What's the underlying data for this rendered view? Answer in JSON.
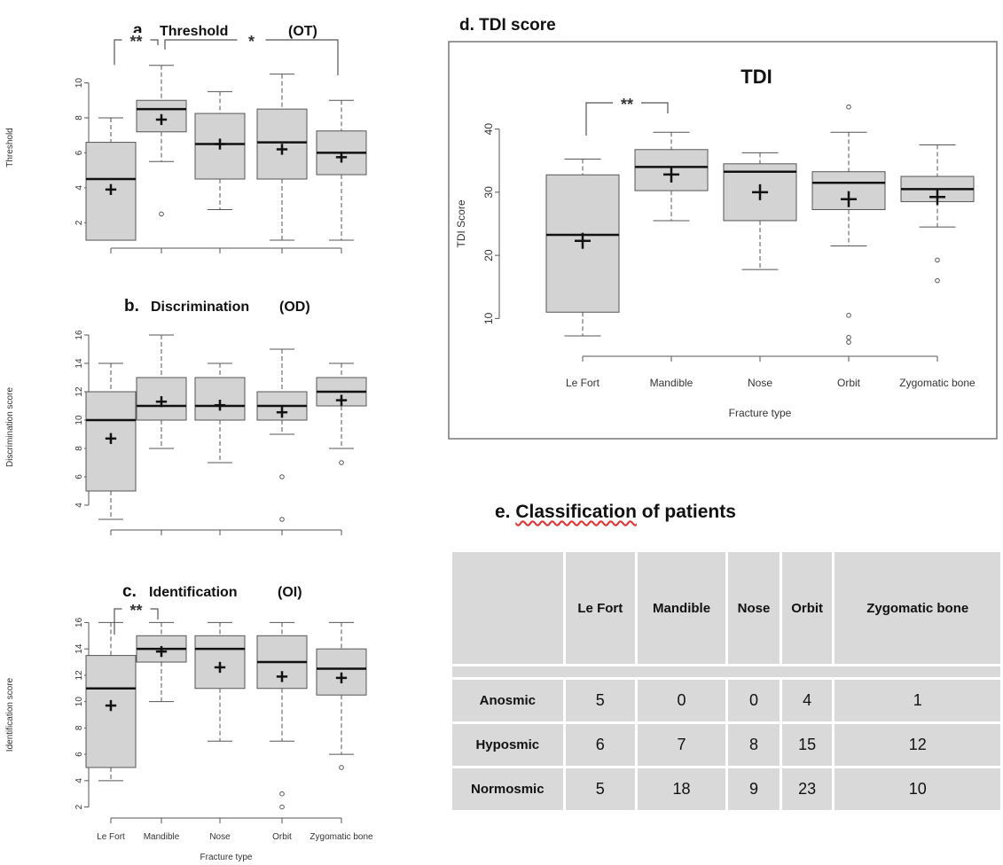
{
  "chart_data": [
    {
      "id": "threshold",
      "type": "box",
      "panel_letter": "a.",
      "title": "Threshold",
      "title_code": "(OT)",
      "xlabel": "",
      "ylabel": "Threshold",
      "ylim": [
        0.8,
        11.8
      ],
      "yticks": [
        2,
        4,
        6,
        8,
        10
      ],
      "categories": [
        "Le Fort",
        "Mandible",
        "Nose",
        "Orbit",
        "Zygomatic bone"
      ],
      "show_category_labels": false,
      "boxes": [
        {
          "low": 1,
          "q1": 1,
          "median": 4.5,
          "q3": 6.6,
          "high": 8,
          "mean": 3.9,
          "outliers": []
        },
        {
          "low": 5.5,
          "q1": 7.2,
          "median": 8.5,
          "q3": 9,
          "high": 11,
          "mean": 7.9,
          "outliers": [
            2.5
          ]
        },
        {
          "low": 2.75,
          "q1": 4.5,
          "median": 6.5,
          "q3": 8.25,
          "high": 9.5,
          "mean": 6.5,
          "outliers": []
        },
        {
          "low": 1,
          "q1": 4.5,
          "median": 6.6,
          "q3": 8.5,
          "high": 10.5,
          "mean": 6.2,
          "outliers": []
        },
        {
          "low": 1,
          "q1": 4.75,
          "median": 6,
          "q3": 7.25,
          "high": 9,
          "mean": 5.75,
          "outliers": []
        }
      ],
      "significance": [
        {
          "from": 0,
          "to": 1,
          "label": "**"
        },
        {
          "from": 1,
          "to": 4,
          "label": "*"
        }
      ]
    },
    {
      "id": "discrimination",
      "type": "box",
      "panel_letter": "b.",
      "title": "Discrimination",
      "title_code": "(OD)",
      "xlabel": "",
      "ylabel": "Discrimination score",
      "ylim": [
        2.5,
        16.5
      ],
      "yticks": [
        4,
        6,
        8,
        10,
        12,
        14,
        16
      ],
      "categories": [
        "Le Fort",
        "Mandible",
        "Nose",
        "Orbit",
        "Zygomatic bone"
      ],
      "show_category_labels": false,
      "boxes": [
        {
          "low": 3,
          "q1": 5,
          "median": 10,
          "q3": 12,
          "high": 14,
          "mean": 8.7,
          "outliers": []
        },
        {
          "low": 8,
          "q1": 10,
          "median": 11,
          "q3": 13,
          "high": 16,
          "mean": 11.3,
          "outliers": []
        },
        {
          "low": 7,
          "q1": 10,
          "median": 11,
          "q3": 13,
          "high": 14,
          "mean": 11.05,
          "outliers": []
        },
        {
          "low": 9,
          "q1": 10,
          "median": 11,
          "q3": 12,
          "high": 15,
          "mean": 10.55,
          "outliers": [
            6,
            3
          ]
        },
        {
          "low": 8,
          "q1": 11,
          "median": 12,
          "q3": 13,
          "high": 14,
          "mean": 11.4,
          "outliers": [
            7
          ]
        }
      ],
      "significance": []
    },
    {
      "id": "identification",
      "type": "box",
      "panel_letter": "c.",
      "title": "Identification",
      "title_code": "(OI)",
      "xlabel": "Fracture type",
      "ylabel": "Identification score",
      "ylim": [
        1.5,
        16.5
      ],
      "yticks": [
        2,
        4,
        6,
        8,
        10,
        12,
        14,
        16
      ],
      "categories": [
        "Le Fort",
        "Mandible",
        "Nose",
        "Orbit",
        "Zygomatic bone"
      ],
      "show_category_labels": true,
      "boxes": [
        {
          "low": 4,
          "q1": 5,
          "median": 11,
          "q3": 13.5,
          "high": 16,
          "mean": 9.7,
          "outliers": []
        },
        {
          "low": 10,
          "q1": 13,
          "median": 14,
          "q3": 15,
          "high": 16,
          "mean": 13.8,
          "outliers": []
        },
        {
          "low": 7,
          "q1": 11,
          "median": 14,
          "q3": 15,
          "high": 16,
          "mean": 12.6,
          "outliers": []
        },
        {
          "low": 7,
          "q1": 11,
          "median": 13,
          "q3": 15,
          "high": 16,
          "mean": 11.9,
          "outliers": [
            3,
            2
          ]
        },
        {
          "low": 6,
          "q1": 10.5,
          "median": 12.5,
          "q3": 14,
          "high": 16,
          "mean": 11.8,
          "outliers": [
            5
          ]
        }
      ],
      "significance": [
        {
          "from": 0,
          "to": 1,
          "label": "**"
        }
      ]
    },
    {
      "id": "tdi",
      "type": "box",
      "panel_letter": "d.",
      "title": "TDI score",
      "inner_title": "TDI",
      "xlabel": "Fracture type",
      "ylabel": "TDI Score",
      "ylim": [
        5,
        45
      ],
      "yticks": [
        10,
        20,
        30,
        40
      ],
      "categories": [
        "Le Fort",
        "Mandible",
        "Nose",
        "Orbit",
        "Zygomatic bone"
      ],
      "show_category_labels": true,
      "boxes": [
        {
          "low": 7.25,
          "q1": 11,
          "median": 23.25,
          "q3": 32.75,
          "high": 35.25,
          "mean": 22.3,
          "outliers": []
        },
        {
          "low": 25.5,
          "q1": 30.25,
          "median": 34,
          "q3": 36.75,
          "high": 39.5,
          "mean": 32.8,
          "outliers": []
        },
        {
          "low": 17.75,
          "q1": 25.5,
          "median": 33.25,
          "q3": 34.5,
          "high": 36.25,
          "mean": 30,
          "outliers": []
        },
        {
          "low": 21.5,
          "q1": 27.25,
          "median": 31.5,
          "q3": 33.25,
          "high": 39.5,
          "mean": 28.9,
          "outliers": [
            43.5,
            10.5,
            7,
            6.25
          ]
        },
        {
          "low": 24.5,
          "q1": 28.5,
          "median": 30.5,
          "q3": 32.5,
          "high": 37.5,
          "mean": 29.25,
          "outliers": [
            19.25,
            16
          ]
        }
      ],
      "significance": [
        {
          "from": 0,
          "to": 1,
          "label": "**"
        }
      ]
    },
    {
      "id": "classification",
      "type": "table",
      "panel_letter": "e.",
      "title_lead": "Classification",
      "title_rest": "of patients",
      "columns": [
        "",
        "Le Fort",
        "Mandible",
        "Nose",
        "Orbit",
        "Zygomatic bone"
      ],
      "rows": [
        {
          "label": "Anosmic",
          "values": [
            "5",
            "0",
            "0",
            "4",
            "1"
          ]
        },
        {
          "label": "Hyposmic",
          "values": [
            "6",
            "7",
            "8",
            "15",
            "12"
          ]
        },
        {
          "label": "Normosmic",
          "values": [
            "5",
            "18",
            "9",
            "23",
            "10"
          ]
        }
      ]
    }
  ],
  "colors": {
    "box_fill": "#d3d3d3",
    "stroke": "#555555",
    "median": "#111111",
    "table_cell": "#d9d9d9",
    "frame": "#777777"
  }
}
